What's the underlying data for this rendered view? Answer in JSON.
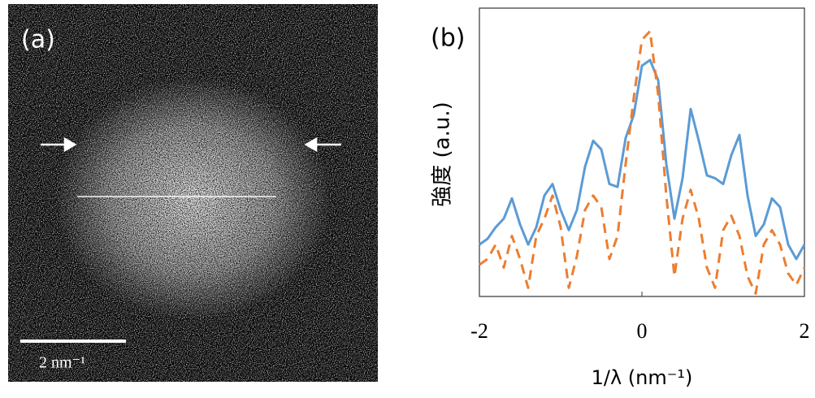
{
  "panel_a": {
    "label": "(a)",
    "scale_bar": "2 nm⁻¹"
  },
  "chart_data": {
    "type": "line",
    "panel_label": "(b)",
    "x_label": "1/λ (nm⁻¹)",
    "y_label": "強度 (a.u.)",
    "x": [
      -2,
      -1.9,
      -1.8,
      -1.7,
      -1.6,
      -1.5,
      -1.4,
      -1.3,
      -1.2,
      -1.1,
      -1,
      -0.9,
      -0.8,
      -0.7,
      -0.6,
      -0.5,
      -0.4,
      -0.3,
      -0.2,
      -0.1,
      0,
      0.1,
      0.2,
      0.3,
      0.4,
      0.5,
      0.6,
      0.7,
      0.8,
      0.9,
      1,
      1.1,
      1.2,
      1.3,
      1.4,
      1.5,
      1.6,
      1.7,
      1.8,
      1.9,
      2
    ],
    "series": [
      {
        "color": "#5b9bd5",
        "dashed": false,
        "values": [
          18,
          20,
          24,
          27,
          34,
          25,
          18,
          24,
          35,
          39,
          30,
          23,
          30,
          45,
          54,
          51,
          39,
          38,
          55,
          63,
          80,
          82,
          75,
          46,
          27,
          41,
          65,
          54,
          42,
          41,
          39,
          49,
          56,
          35,
          21,
          25,
          34,
          31,
          18,
          13,
          18
        ]
      },
      {
        "color": "#ed7d31",
        "dashed": true,
        "values": [
          11,
          13,
          18,
          10,
          21,
          13,
          3,
          21,
          27,
          35,
          24,
          3,
          14,
          30,
          35,
          31,
          13,
          21,
          46,
          69,
          89,
          92,
          70,
          35,
          7,
          27,
          37,
          27,
          10,
          3,
          23,
          28,
          21,
          7,
          1,
          18,
          23,
          18,
          8,
          4,
          10
        ]
      }
    ],
    "xlim": [
      -2,
      2
    ],
    "ylim": [
      0,
      100
    ],
    "xticks": [
      -2,
      0,
      2
    ]
  }
}
